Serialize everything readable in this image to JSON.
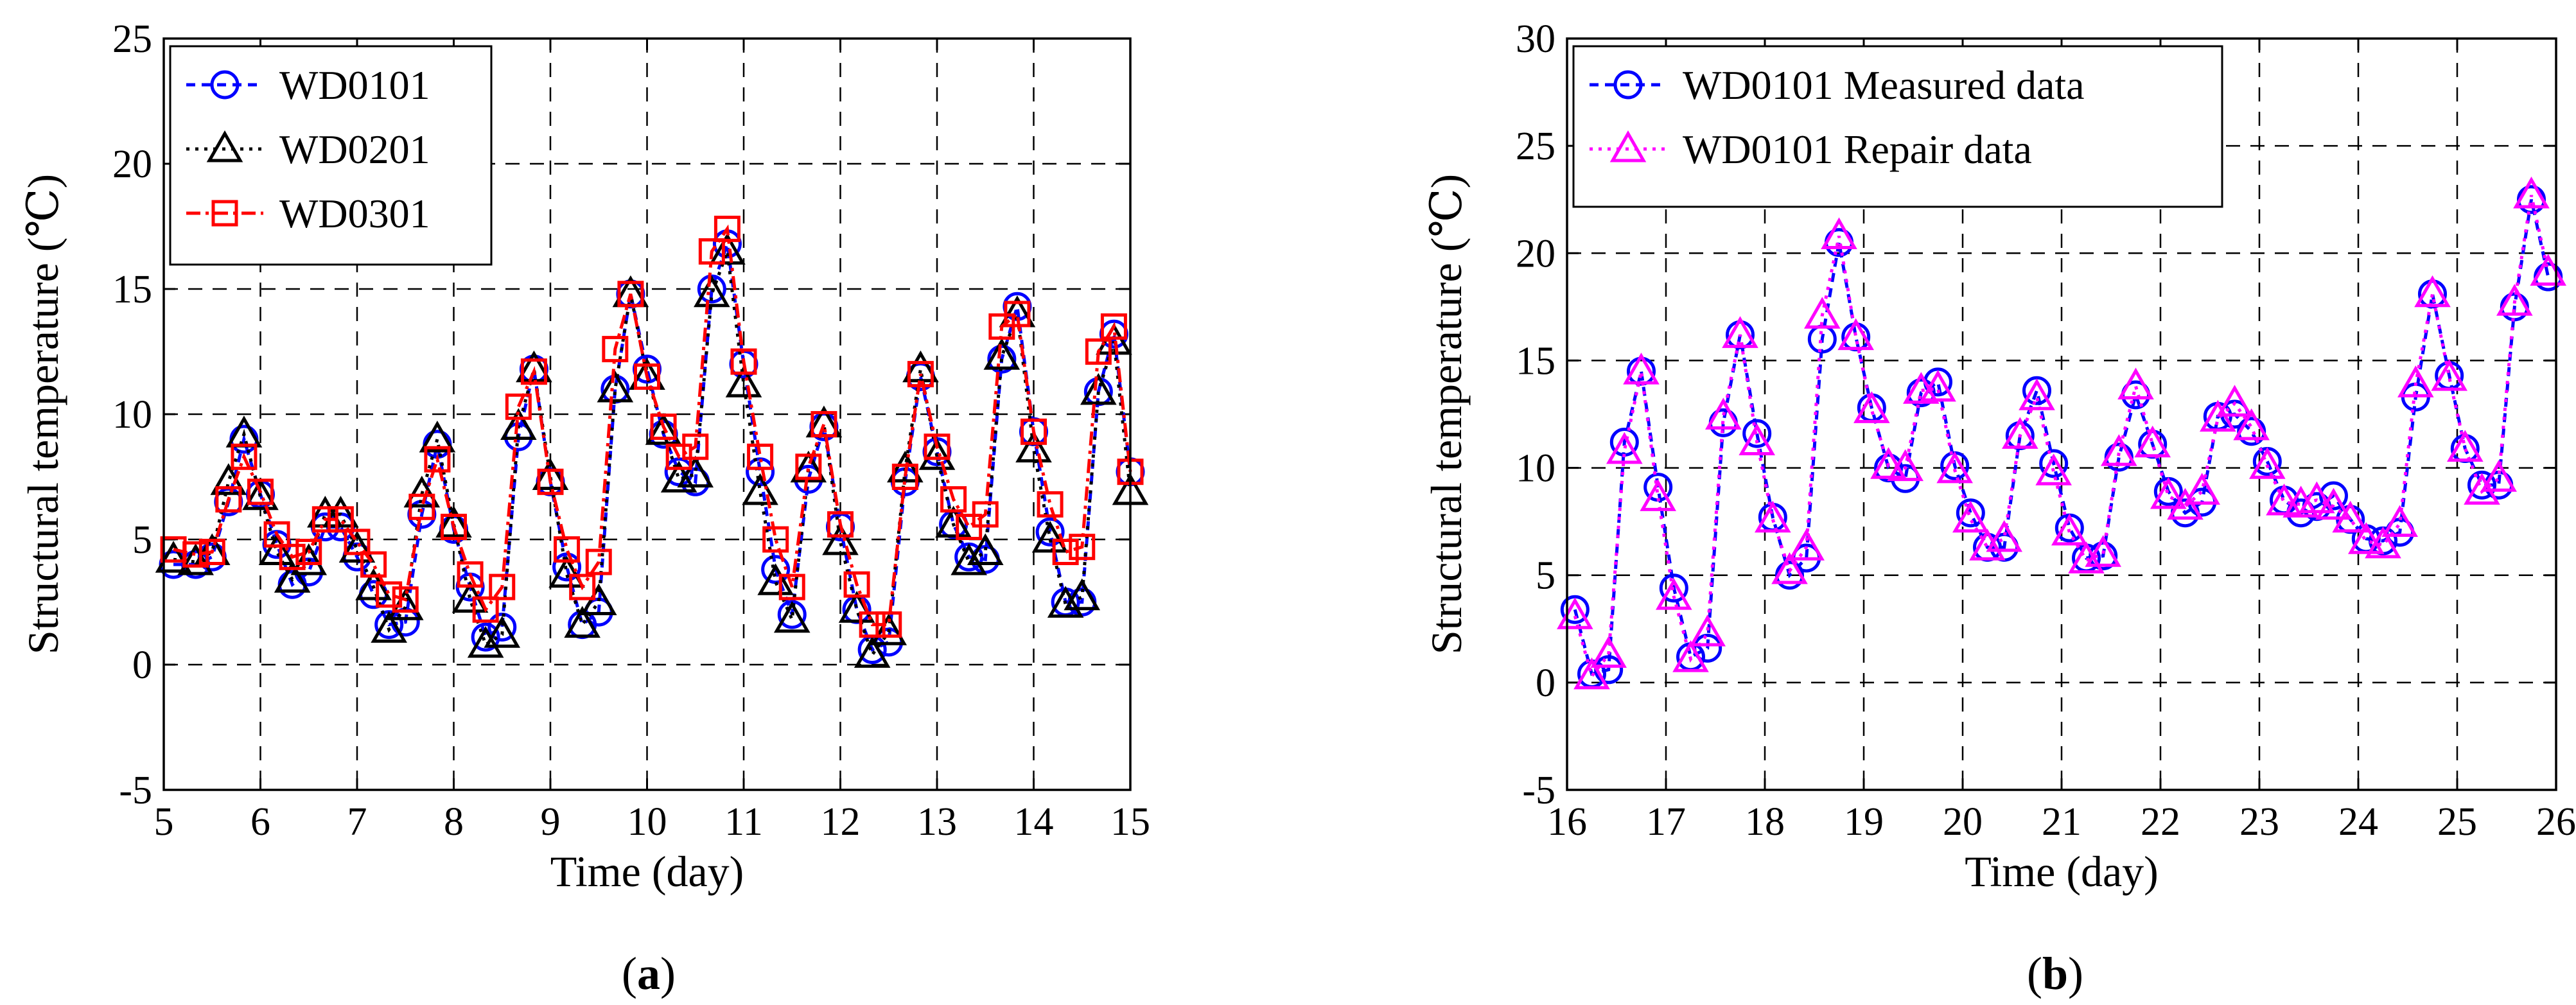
{
  "figure": {
    "caption_a_open": "(",
    "caption_a_letter": "a",
    "caption_a_close": ")",
    "caption_b_open": "(",
    "caption_b_letter": "b",
    "caption_b_close": ")"
  },
  "chart_data": [
    {
      "type": "line",
      "panel": "a",
      "title": "",
      "xlabel": "Time (day)",
      "ylabel": "Structural temperature (℃)",
      "xlim": [
        5,
        15
      ],
      "ylim": [
        -5,
        25
      ],
      "xticks": [
        "5",
        "6",
        "7",
        "8",
        "9",
        "10",
        "11",
        "12",
        "13",
        "14",
        "15"
      ],
      "yticks": [
        "-5",
        "0",
        "5",
        "10",
        "15",
        "20",
        "25"
      ],
      "grid": true,
      "legend_position": "top-left",
      "x": [
        5.1,
        5.33,
        5.5,
        5.67,
        5.83,
        6.0,
        6.17,
        6.33,
        6.5,
        6.67,
        6.83,
        7.0,
        7.17,
        7.33,
        7.5,
        7.67,
        7.83,
        8.0,
        8.17,
        8.33,
        8.5,
        8.67,
        8.83,
        9.0,
        9.17,
        9.33,
        9.5,
        9.67,
        9.83,
        10.0,
        10.17,
        10.33,
        10.5,
        10.67,
        10.83,
        11.0,
        11.17,
        11.33,
        11.5,
        11.67,
        11.83,
        12.0,
        12.17,
        12.33,
        12.5,
        12.67,
        12.83,
        13.0,
        13.17,
        13.33,
        13.5,
        13.67,
        13.83,
        14.0,
        14.17,
        14.33,
        14.5,
        14.67,
        14.83,
        15.0
      ],
      "series": [
        {
          "name": "WD0101",
          "color": "#0000ff",
          "marker": "circle",
          "values": [
            4.0,
            4.0,
            4.3,
            6.5,
            9.0,
            6.8,
            4.8,
            3.2,
            3.7,
            5.5,
            5.5,
            4.3,
            2.8,
            1.6,
            1.7,
            6.0,
            8.8,
            5.4,
            3.1,
            1.1,
            1.5,
            9.1,
            11.8,
            7.3,
            3.9,
            1.6,
            2.1,
            11.0,
            14.8,
            11.8,
            9.2,
            7.7,
            7.3,
            15.0,
            16.8,
            12.0,
            7.7,
            3.8,
            2.0,
            7.4,
            9.5,
            5.5,
            2.2,
            0.6,
            0.9,
            7.3,
            11.5,
            8.5,
            5.6,
            4.3,
            4.2,
            12.2,
            14.3,
            9.3,
            5.3,
            2.5,
            2.5,
            10.9,
            13.2,
            7.7
          ]
        },
        {
          "name": "WD0201",
          "color": "#000000",
          "marker": "triangle",
          "values": [
            4.2,
            4.1,
            4.5,
            7.3,
            9.2,
            6.7,
            4.5,
            3.4,
            4.1,
            6.0,
            6.0,
            4.6,
            3.1,
            1.4,
            2.3,
            6.8,
            9.0,
            5.6,
            2.6,
            0.8,
            1.2,
            9.5,
            11.8,
            7.5,
            3.6,
            1.6,
            2.5,
            11.0,
            14.8,
            11.5,
            9.3,
            7.4,
            7.6,
            14.8,
            16.5,
            11.2,
            6.9,
            3.3,
            1.8,
            7.8,
            9.6,
            4.9,
            2.2,
            0.4,
            1.3,
            7.8,
            11.8,
            8.3,
            5.6,
            4.1,
            4.5,
            12.3,
            14.0,
            8.6,
            5.0,
            2.4,
            2.7,
            10.9,
            12.9,
            6.9
          ]
        },
        {
          "name": "WD0301",
          "color": "#ff0000",
          "marker": "square",
          "values": [
            4.6,
            4.4,
            4.5,
            6.6,
            8.3,
            6.9,
            5.2,
            4.3,
            4.5,
            5.8,
            5.8,
            4.9,
            4.0,
            2.8,
            2.6,
            6.3,
            8.2,
            5.5,
            3.6,
            2.2,
            3.1,
            10.3,
            11.7,
            7.3,
            4.6,
            3.1,
            4.1,
            12.6,
            14.8,
            11.5,
            9.5,
            8.3,
            8.7,
            16.5,
            17.4,
            12.1,
            8.3,
            5.0,
            3.1,
            7.9,
            9.6,
            5.6,
            3.2,
            1.6,
            1.6,
            7.5,
            11.6,
            8.7,
            6.6,
            5.5,
            6.0,
            13.5,
            14.0,
            9.3,
            6.4,
            4.5,
            4.7,
            12.5,
            13.5,
            7.7
          ]
        }
      ]
    },
    {
      "type": "line",
      "panel": "b",
      "title": "",
      "xlabel": "Time (day)",
      "ylabel": "Structural temperature (℃)",
      "xlim": [
        16,
        26
      ],
      "ylim": [
        -5,
        30
      ],
      "xticks": [
        "16",
        "17",
        "18",
        "19",
        "20",
        "21",
        "22",
        "23",
        "24",
        "25",
        "26"
      ],
      "yticks": [
        "-5",
        "0",
        "5",
        "10",
        "15",
        "20",
        "25",
        "30"
      ],
      "grid": true,
      "legend_position": "top-left",
      "x": [
        16.08,
        16.25,
        16.42,
        16.58,
        16.75,
        16.92,
        17.08,
        17.25,
        17.42,
        17.58,
        17.75,
        17.92,
        18.08,
        18.25,
        18.42,
        18.58,
        18.75,
        18.92,
        19.08,
        19.25,
        19.42,
        19.58,
        19.75,
        19.92,
        20.08,
        20.25,
        20.42,
        20.58,
        20.75,
        20.92,
        21.08,
        21.25,
        21.42,
        21.58,
        21.75,
        21.92,
        22.08,
        22.25,
        22.42,
        22.58,
        22.75,
        22.92,
        23.08,
        23.25,
        23.42,
        23.58,
        23.75,
        23.92,
        24.08,
        24.25,
        24.42,
        24.58,
        24.75,
        24.92,
        25.08,
        25.25,
        25.42,
        25.58,
        25.75,
        25.92
      ],
      "series": [
        {
          "name": "WD0101 Measured data",
          "color": "#0000ff",
          "marker": "circle",
          "values": [
            3.4,
            0.4,
            0.6,
            11.2,
            14.5,
            9.1,
            4.4,
            1.2,
            1.6,
            12.1,
            16.2,
            11.6,
            7.7,
            5.0,
            5.8,
            16.0,
            20.5,
            16.1,
            12.8,
            10.0,
            9.5,
            13.5,
            14.0,
            10.1,
            7.9,
            6.3,
            6.3,
            11.5,
            13.6,
            10.2,
            7.2,
            5.8,
            5.9,
            10.5,
            13.4,
            11.1,
            8.9,
            7.9,
            8.4,
            12.4,
            12.5,
            11.7,
            10.3,
            8.5,
            7.9,
            8.2,
            8.7,
            7.6,
            6.7,
            6.6,
            7.0,
            13.3,
            18.1,
            14.3,
            10.9,
            9.2,
            9.2,
            17.5,
            22.5,
            18.9
          ]
        },
        {
          "name": "WD0101 Repair data",
          "color": "#ff00ff",
          "marker": "triangle",
          "values": [
            3.1,
            0.3,
            1.3,
            10.8,
            14.5,
            8.6,
            4.0,
            1.1,
            2.3,
            12.4,
            16.2,
            11.2,
            7.6,
            5.2,
            6.3,
            17.1,
            20.8,
            16.1,
            12.7,
            10.1,
            10.0,
            13.6,
            13.7,
            9.9,
            7.6,
            6.3,
            6.7,
            11.5,
            13.3,
            9.8,
            7.0,
            5.7,
            6.0,
            10.7,
            13.8,
            11.1,
            8.7,
            8.2,
            8.9,
            12.3,
            13.0,
            11.9,
            10.1,
            8.4,
            8.3,
            8.5,
            8.2,
            7.6,
            6.6,
            6.4,
            7.4,
            13.9,
            18.1,
            14.2,
            10.9,
            8.9,
            9.5,
            17.7,
            22.7,
            19.1
          ]
        }
      ]
    }
  ]
}
